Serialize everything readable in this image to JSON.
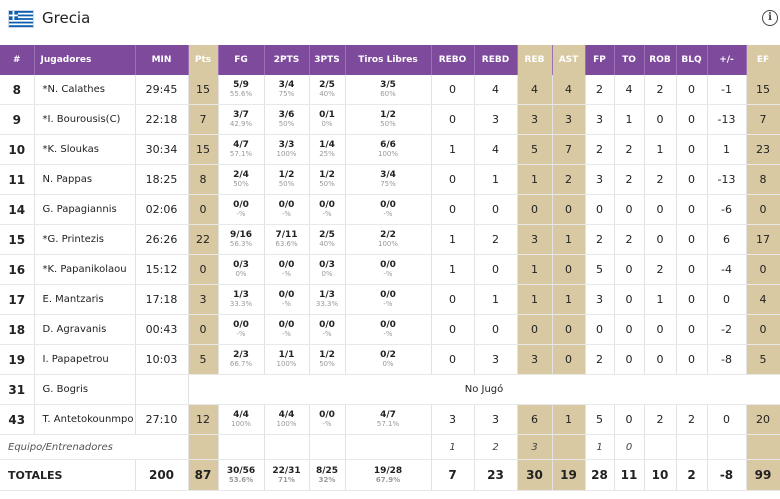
{
  "team": {
    "name": "Grecia",
    "flag_icon": "greece-flag-icon"
  },
  "headers": {
    "num": "#",
    "player": "Jugadores",
    "min": "MIN",
    "pts": "Pts",
    "fg": "FG",
    "two": "2PTS",
    "three": "3PTS",
    "ft": "Tiros Libres",
    "rebo": "REBO",
    "rebd": "REBD",
    "reb": "REB",
    "ast": "AST",
    "fp": "FP",
    "to": "TO",
    "rob": "ROB",
    "blq": "BLQ",
    "pm": "+/-",
    "ef": "EF"
  },
  "players": [
    {
      "num": "8",
      "name": "*N. Calathes",
      "min": "29:45",
      "pts": "15",
      "fg": "5/9",
      "fg_pct": "55.6%",
      "two": "3/4",
      "two_pct": "75%",
      "three": "2/5",
      "three_pct": "40%",
      "ft": "3/5",
      "ft_pct": "60%",
      "rebo": "0",
      "rebd": "4",
      "reb": "4",
      "ast": "4",
      "fp": "2",
      "to": "4",
      "rob": "2",
      "blq": "0",
      "pm": "-1",
      "ef": "15"
    },
    {
      "num": "9",
      "name": "*I. Bourousis(C)",
      "min": "22:18",
      "pts": "7",
      "fg": "3/7",
      "fg_pct": "42.9%",
      "two": "3/6",
      "two_pct": "50%",
      "three": "0/1",
      "three_pct": "0%",
      "ft": "1/2",
      "ft_pct": "50%",
      "rebo": "0",
      "rebd": "3",
      "reb": "3",
      "ast": "3",
      "fp": "3",
      "to": "1",
      "rob": "0",
      "blq": "0",
      "pm": "-13",
      "ef": "7"
    },
    {
      "num": "10",
      "name": "*K. Sloukas",
      "min": "30:34",
      "pts": "15",
      "fg": "4/7",
      "fg_pct": "57.1%",
      "two": "3/3",
      "two_pct": "100%",
      "three": "1/4",
      "three_pct": "25%",
      "ft": "6/6",
      "ft_pct": "100%",
      "rebo": "1",
      "rebd": "4",
      "reb": "5",
      "ast": "7",
      "fp": "2",
      "to": "2",
      "rob": "1",
      "blq": "0",
      "pm": "1",
      "ef": "23"
    },
    {
      "num": "11",
      "name": "N. Pappas",
      "min": "18:25",
      "pts": "8",
      "fg": "2/4",
      "fg_pct": "50%",
      "two": "1/2",
      "two_pct": "50%",
      "three": "1/2",
      "three_pct": "50%",
      "ft": "3/4",
      "ft_pct": "75%",
      "rebo": "0",
      "rebd": "1",
      "reb": "1",
      "ast": "2",
      "fp": "3",
      "to": "2",
      "rob": "2",
      "blq": "0",
      "pm": "-13",
      "ef": "8"
    },
    {
      "num": "14",
      "name": "G. Papagiannis",
      "min": "02:06",
      "pts": "0",
      "fg": "0/0",
      "fg_pct": "-%",
      "two": "0/0",
      "two_pct": "-%",
      "three": "0/0",
      "three_pct": "-%",
      "ft": "0/0",
      "ft_pct": "-%",
      "rebo": "0",
      "rebd": "0",
      "reb": "0",
      "ast": "0",
      "fp": "0",
      "to": "0",
      "rob": "0",
      "blq": "0",
      "pm": "-6",
      "ef": "0"
    },
    {
      "num": "15",
      "name": "*G. Printezis",
      "min": "26:26",
      "pts": "22",
      "fg": "9/16",
      "fg_pct": "56.3%",
      "two": "7/11",
      "two_pct": "63.6%",
      "three": "2/5",
      "three_pct": "40%",
      "ft": "2/2",
      "ft_pct": "100%",
      "rebo": "1",
      "rebd": "2",
      "reb": "3",
      "ast": "1",
      "fp": "2",
      "to": "2",
      "rob": "0",
      "blq": "0",
      "pm": "6",
      "ef": "17"
    },
    {
      "num": "16",
      "name": "*K. Papanikolaou",
      "min": "15:12",
      "pts": "0",
      "fg": "0/3",
      "fg_pct": "0%",
      "two": "0/0",
      "two_pct": "-%",
      "three": "0/3",
      "three_pct": "0%",
      "ft": "0/0",
      "ft_pct": "-%",
      "rebo": "1",
      "rebd": "0",
      "reb": "1",
      "ast": "0",
      "fp": "5",
      "to": "0",
      "rob": "2",
      "blq": "0",
      "pm": "-4",
      "ef": "0"
    },
    {
      "num": "17",
      "name": "E. Mantzaris",
      "min": "17:18",
      "pts": "3",
      "fg": "1/3",
      "fg_pct": "33.3%",
      "two": "0/0",
      "two_pct": "-%",
      "three": "1/3",
      "three_pct": "33.3%",
      "ft": "0/0",
      "ft_pct": "-%",
      "rebo": "0",
      "rebd": "1",
      "reb": "1",
      "ast": "1",
      "fp": "3",
      "to": "0",
      "rob": "1",
      "blq": "0",
      "pm": "0",
      "ef": "4"
    },
    {
      "num": "18",
      "name": "D. Agravanis",
      "min": "00:43",
      "pts": "0",
      "fg": "0/0",
      "fg_pct": "-%",
      "two": "0/0",
      "two_pct": "-%",
      "three": "0/0",
      "three_pct": "-%",
      "ft": "0/0",
      "ft_pct": "-%",
      "rebo": "0",
      "rebd": "0",
      "reb": "0",
      "ast": "0",
      "fp": "0",
      "to": "0",
      "rob": "0",
      "blq": "0",
      "pm": "-2",
      "ef": "0"
    },
    {
      "num": "19",
      "name": "I. Papapetrou",
      "min": "10:03",
      "pts": "5",
      "fg": "2/3",
      "fg_pct": "66.7%",
      "two": "1/1",
      "two_pct": "100%",
      "three": "1/2",
      "three_pct": "50%",
      "ft": "0/2",
      "ft_pct": "0%",
      "rebo": "0",
      "rebd": "3",
      "reb": "3",
      "ast": "0",
      "fp": "2",
      "to": "0",
      "rob": "0",
      "blq": "0",
      "pm": "-8",
      "ef": "5"
    }
  ],
  "dnp_player": {
    "num": "31",
    "name": "G. Bogris",
    "note": "No Jugó"
  },
  "last_player": {
    "num": "43",
    "name": "T. Antetokounmpo",
    "min": "27:10",
    "pts": "12",
    "fg": "4/4",
    "fg_pct": "100%",
    "two": "4/4",
    "two_pct": "100%",
    "three": "0/0",
    "three_pct": "-%",
    "ft": "4/7",
    "ft_pct": "57.1%",
    "rebo": "3",
    "rebd": "3",
    "reb": "6",
    "ast": "1",
    "fp": "5",
    "to": "0",
    "rob": "2",
    "blq": "2",
    "pm": "0",
    "ef": "20"
  },
  "staff": {
    "label": "Equipo/Entrenadores",
    "rebo": "1",
    "rebd": "2",
    "reb": "3",
    "fp": "1",
    "to": "0"
  },
  "totals": {
    "label": "TOTALES",
    "min": "200",
    "pts": "87",
    "fg": "30/56",
    "fg_pct": "53.6%",
    "two": "22/31",
    "two_pct": "71%",
    "three": "8/25",
    "three_pct": "32%",
    "ft": "19/28",
    "ft_pct": "67.9%",
    "rebo": "7",
    "rebd": "23",
    "reb": "30",
    "ast": "19",
    "fp": "28",
    "to": "11",
    "rob": "10",
    "blq": "2",
    "pm": "-8",
    "ef": "99"
  },
  "colors": {
    "header_purple": "#7e4a9c",
    "highlight_tan": "#d8c9a3"
  }
}
